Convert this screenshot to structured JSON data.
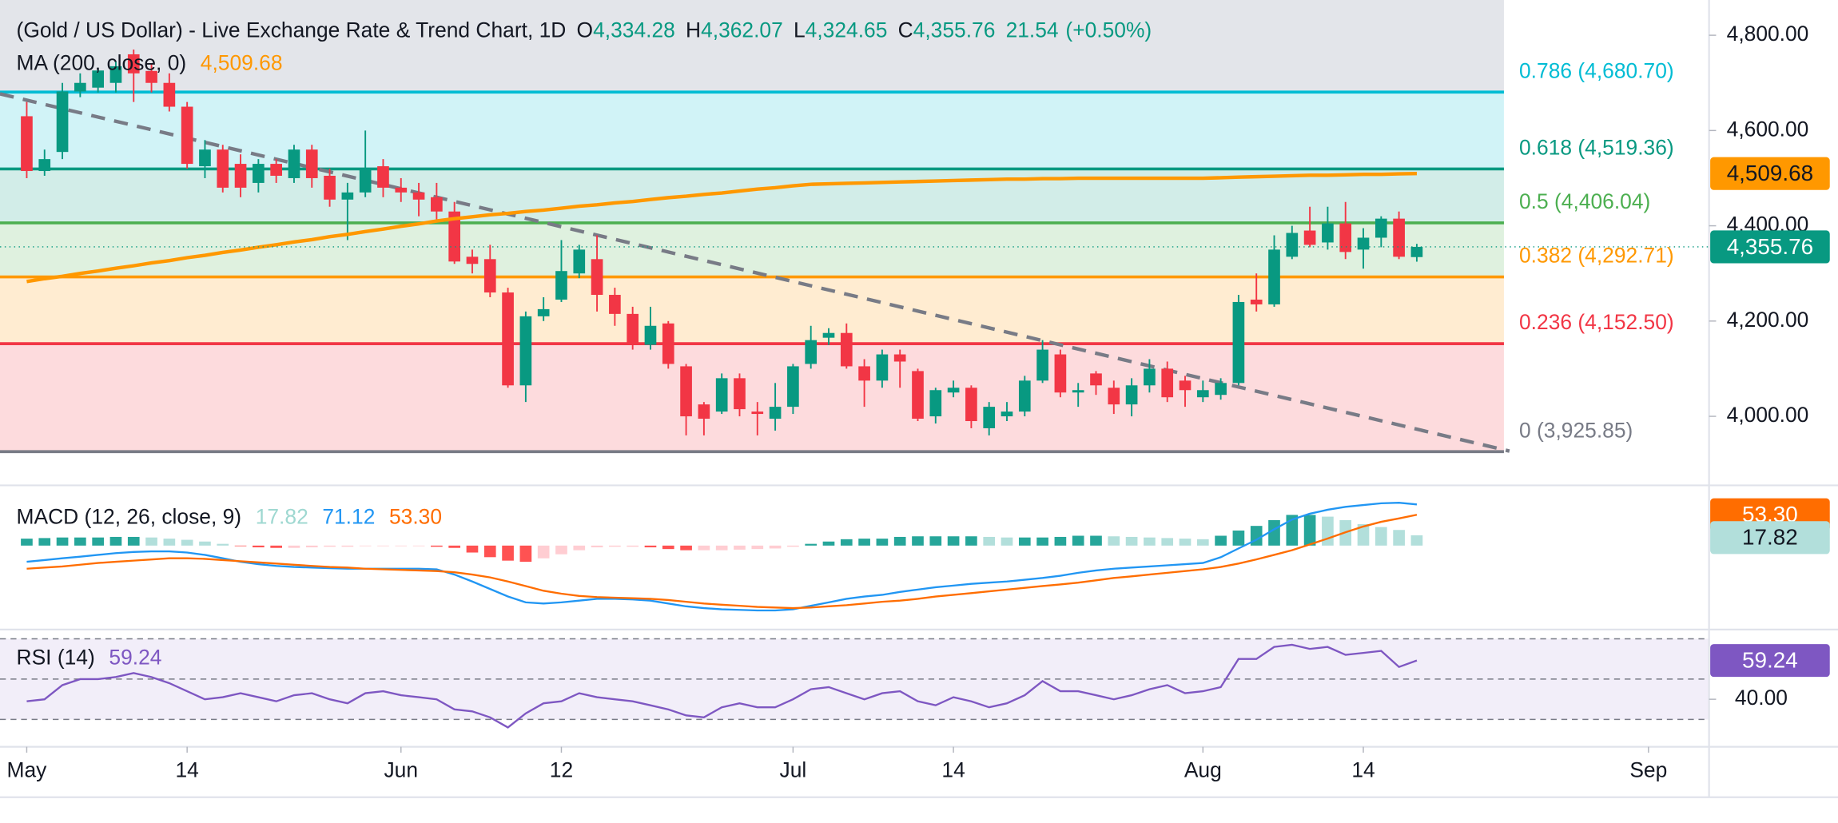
{
  "chart_data": {
    "type": "candlestick",
    "title": "(Gold / US Dollar) - Live Exchange Rate & Trend Chart, 1D",
    "ohlc_legend": [
      {
        "key": "O",
        "value": "4,334.28"
      },
      {
        "key": "H",
        "value": "4,362.07"
      },
      {
        "key": "L",
        "value": "4,324.65"
      },
      {
        "key": "C",
        "value": "4,355.76"
      }
    ],
    "change": "21.54",
    "change_pct": "(+0.50%)",
    "up_color": "#089981",
    "down_color": "#f23645",
    "xlim": [
      -1.5,
      94.4
    ],
    "xticks": [
      {
        "value": 0,
        "label": "May"
      },
      {
        "value": 9,
        "label": "14"
      },
      {
        "value": 21,
        "label": "Jun"
      },
      {
        "value": 30,
        "label": "12"
      },
      {
        "value": 43,
        "label": "Jul"
      },
      {
        "value": 52,
        "label": "14"
      },
      {
        "value": 66,
        "label": "Aug"
      },
      {
        "value": 75,
        "label": "14"
      },
      {
        "value": 91,
        "label": "Sep"
      }
    ],
    "ylim": [
      3860,
      4874
    ],
    "yticks": [
      {
        "value": 4000,
        "label": "4,000.00"
      },
      {
        "value": 4200,
        "label": "4,200.00"
      },
      {
        "value": 4400,
        "label": "4,400.00"
      },
      {
        "value": 4600,
        "label": "4,600.00"
      },
      {
        "value": 4800,
        "label": "4,800.00"
      }
    ],
    "open": [
      4630,
      4515,
      4555,
      4682,
      4690,
      4700,
      4760,
      4725,
      4700,
      4650,
      4525,
      4560,
      4530,
      4490,
      4530,
      4500,
      4560,
      4505,
      4455,
      4470,
      4525,
      4480,
      4470,
      4460,
      4430,
      4335,
      4330,
      4260,
      4065,
      4210,
      4245,
      4300,
      4330,
      4255,
      4215,
      4150,
      4195,
      4105,
      4025,
      4010,
      4080,
      4010,
      3995,
      4020,
      4110,
      4165,
      4175,
      4105,
      4075,
      4130,
      4095,
      4000,
      4050,
      4060,
      3975,
      4000,
      4010,
      4075,
      4130,
      4050,
      4090,
      4060,
      4025,
      4065,
      4100,
      4075,
      4040,
      4045,
      4070,
      4245,
      4235,
      4335,
      4390,
      4365,
      4405,
      4350,
      4375,
      4415,
      4334.28
    ],
    "high": [
      4660,
      4560,
      4700,
      4720,
      4730,
      4745,
      4770,
      4740,
      4720,
      4660,
      4580,
      4570,
      4550,
      4540,
      4540,
      4570,
      4570,
      4520,
      4490,
      4600,
      4540,
      4500,
      4490,
      4490,
      4450,
      4350,
      4360,
      4270,
      4220,
      4250,
      4370,
      4360,
      4380,
      4270,
      4230,
      4230,
      4200,
      4110,
      4030,
      4090,
      4090,
      4030,
      4070,
      4110,
      4190,
      4185,
      4195,
      4120,
      4140,
      4140,
      4100,
      4060,
      4075,
      4065,
      4030,
      4030,
      4085,
      4160,
      4140,
      4070,
      4095,
      4075,
      4080,
      4120,
      4115,
      4085,
      4075,
      4080,
      4255,
      4300,
      4380,
      4400,
      4440,
      4440,
      4450,
      4395,
      4420,
      4430,
      4362.07
    ],
    "low": [
      4500,
      4505,
      4540,
      4670,
      4680,
      4680,
      4660,
      4680,
      4640,
      4520,
      4500,
      4470,
      4460,
      4470,
      4490,
      4490,
      4480,
      4440,
      4370,
      4460,
      4460,
      4450,
      4420,
      4410,
      4320,
      4300,
      4250,
      4060,
      4030,
      4200,
      4240,
      4290,
      4220,
      4190,
      4140,
      4140,
      4100,
      3960,
      3960,
      4005,
      4000,
      3960,
      3970,
      4005,
      4100,
      4150,
      4100,
      4020,
      4060,
      4060,
      3990,
      3985,
      4040,
      3975,
      3960,
      3990,
      4000,
      4070,
      4040,
      4020,
      4045,
      4005,
      4000,
      4050,
      4030,
      4020,
      4030,
      4035,
      4065,
      4220,
      4230,
      4330,
      4355,
      4350,
      4330,
      4310,
      4355,
      4330,
      4324.65
    ],
    "close": [
      4515,
      4540,
      4682,
      4700,
      4726,
      4735,
      4720,
      4700,
      4650,
      4530,
      4560,
      4480,
      4480,
      4530,
      4505,
      4560,
      4500,
      4455,
      4470,
      4520,
      4480,
      4470,
      4455,
      4430,
      4325,
      4320,
      4260,
      4065,
      4210,
      4225,
      4305,
      4350,
      4255,
      4215,
      4150,
      4190,
      4110,
      4000,
      3995,
      4080,
      4015,
      4005,
      4020,
      4105,
      4160,
      4175,
      4105,
      4075,
      4130,
      4115,
      3995,
      4055,
      4060,
      3990,
      4020,
      4010,
      4075,
      4140,
      4050,
      4055,
      4065,
      4025,
      4065,
      4100,
      4040,
      4055,
      4055,
      4070,
      4240,
      4235,
      4350,
      4385,
      4360,
      4405,
      4345,
      4375,
      4415,
      4335,
      4355.76
    ],
    "ma": {
      "name": "MA (200, close, 0)",
      "value_label": "4,509.68",
      "color": "#ff9800",
      "values": [
        4283,
        4289,
        4294,
        4300,
        4305,
        4311,
        4316,
        4322,
        4327,
        4333,
        4338,
        4344,
        4349,
        4355,
        4360,
        4366,
        4371,
        4377,
        4382,
        4388,
        4393,
        4399,
        4404,
        4410,
        4415,
        4419,
        4423,
        4426,
        4430,
        4433,
        4437,
        4441,
        4444,
        4448,
        4451,
        4455,
        4459,
        4462,
        4466,
        4469,
        4473,
        4477,
        4480,
        4484,
        4487,
        4488,
        4489,
        4490,
        4491,
        4492,
        4493,
        4494,
        4495,
        4496,
        4497,
        4498,
        4498,
        4499,
        4499,
        4500,
        4500,
        4500,
        4500,
        4500,
        4500,
        4500,
        4500,
        4501,
        4502,
        4503,
        4504,
        4505,
        4506,
        4506,
        4507,
        4508,
        4508,
        4509,
        4509.68
      ]
    },
    "trendline": {
      "x": [
        -1.5,
        83.2
      ],
      "y": [
        4677,
        3927
      ],
      "color": "#787b86"
    },
    "fib_levels": [
      {
        "label": "0.786 (4,680.70)",
        "value": 4680.7,
        "color": "#00bcd4"
      },
      {
        "label": "0.618 (4,519.36)",
        "value": 4519.36,
        "color": "#089981"
      },
      {
        "label": "0.5 (4,406.04)",
        "value": 4406.04,
        "color": "#4caf50"
      },
      {
        "label": "0.382 (4,292.71)",
        "value": 4292.71,
        "color": "#ff9800"
      },
      {
        "label": "0.236 (4,152.50)",
        "value": 4152.5,
        "color": "#f23645"
      },
      {
        "label": "0 (3,925.85)",
        "value": 3925.85,
        "color": "#787b86"
      }
    ],
    "macd": {
      "name": "MACD (12, 26, close, 9)",
      "ylim": [
        -143,
        102
      ],
      "histogram": {
        "value_label": "17.82",
        "colors": {
          "up_rising": "#26a69a",
          "up_falling": "#b2dfdb",
          "down_falling": "#ff5252",
          "down_rising": "#ffcdd2"
        },
        "values": [
          12,
          13,
          14,
          14,
          14,
          15,
          15,
          14,
          12,
          10,
          7,
          3,
          -1,
          -3,
          -4,
          -4,
          -3,
          -2,
          -2,
          -1,
          -1,
          -1,
          -1,
          -2,
          -4,
          -12,
          -20,
          -26,
          -28,
          -22,
          -15,
          -8,
          -3,
          -2,
          -2,
          -3,
          -6,
          -8,
          -8,
          -8,
          -7,
          -6,
          -5,
          -2,
          3,
          7,
          11,
          12,
          12,
          15,
          16,
          16,
          16,
          16,
          15,
          14,
          14,
          14,
          15,
          17,
          17,
          16,
          15,
          14,
          13,
          12,
          11,
          17,
          26,
          34,
          44,
          53,
          53,
          50,
          44,
          37,
          32,
          27,
          17.82
        ]
      },
      "macd": {
        "value_label": "71.12",
        "color": "#2196f3",
        "values": [
          -28,
          -25,
          -22,
          -19,
          -16,
          -13,
          -11,
          -10,
          -10,
          -12,
          -16,
          -22,
          -28,
          -32,
          -35,
          -37,
          -38,
          -39,
          -40,
          -40,
          -40,
          -40,
          -40,
          -41,
          -50,
          -62,
          -75,
          -88,
          -98,
          -100,
          -98,
          -95,
          -92,
          -92,
          -93,
          -95,
          -100,
          -105,
          -108,
          -110,
          -111,
          -112,
          -112,
          -110,
          -104,
          -98,
          -92,
          -88,
          -85,
          -80,
          -76,
          -72,
          -69,
          -66,
          -64,
          -62,
          -59,
          -56,
          -52,
          -47,
          -43,
          -40,
          -38,
          -36,
          -34,
          -32,
          -30,
          -20,
          -5,
          10,
          28,
          45,
          55,
          62,
          67,
          70,
          73,
          74,
          71.12
        ]
      },
      "signal": {
        "value_label": "53.30",
        "color": "#ff6d00",
        "values": [
          -40,
          -38,
          -36,
          -33,
          -30,
          -28,
          -26,
          -24,
          -22,
          -22,
          -23,
          -25,
          -27,
          -29,
          -31,
          -33,
          -35,
          -37,
          -38,
          -40,
          -41,
          -42,
          -43,
          -44,
          -46,
          -50,
          -55,
          -62,
          -70,
          -78,
          -83,
          -87,
          -89,
          -90,
          -91,
          -92,
          -94,
          -97,
          -100,
          -102,
          -104,
          -106,
          -107,
          -108,
          -107,
          -105,
          -103,
          -100,
          -97,
          -95,
          -92,
          -88,
          -85,
          -82,
          -79,
          -76,
          -73,
          -70,
          -67,
          -64,
          -60,
          -56,
          -53,
          -50,
          -47,
          -44,
          -41,
          -37,
          -31,
          -24,
          -16,
          -8,
          2,
          12,
          23,
          33,
          41,
          47,
          53.3
        ]
      }
    },
    "rsi": {
      "name": "RSI (14)",
      "value_label": "59.24",
      "color": "#7e57c2",
      "ylim": [
        17,
        74
      ],
      "bands": [
        70,
        50,
        30
      ],
      "yticks": [
        {
          "value": 40,
          "label": "40.00"
        }
      ],
      "values": [
        39,
        40,
        47,
        50,
        50,
        51,
        53,
        51,
        48,
        44,
        40,
        41,
        43,
        41,
        39,
        42,
        43,
        40,
        38,
        43,
        44,
        42,
        41,
        40,
        35,
        34,
        31,
        26,
        33,
        38,
        39,
        43,
        41,
        40,
        39,
        37,
        35,
        32,
        31,
        36,
        38,
        36,
        36,
        40,
        45,
        46,
        43,
        40,
        43,
        44,
        39,
        37,
        41,
        39,
        36,
        38,
        42,
        49,
        44,
        44,
        42,
        40,
        42,
        45,
        47,
        43,
        44,
        46,
        60,
        60,
        66,
        67,
        65,
        66,
        62,
        63,
        64,
        56,
        59.24
      ]
    }
  }
}
